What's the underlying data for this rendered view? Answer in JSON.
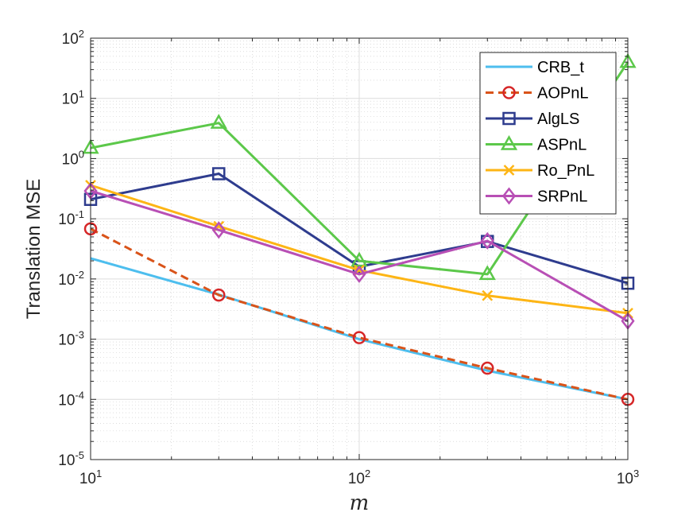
{
  "chart_data": {
    "type": "line",
    "xscale": "log",
    "yscale": "log",
    "x": [
      10,
      30,
      100,
      300,
      1000
    ],
    "xlim": [
      10,
      1000
    ],
    "ylim": [
      1e-05,
      100
    ],
    "xlabel": "m",
    "ylabel": "Translation MSE",
    "grid": true,
    "minor_grid": true,
    "legend_position": "top-right",
    "x_ticks": [
      {
        "base": "10",
        "exp": "1",
        "value": 10
      },
      {
        "base": "10",
        "exp": "2",
        "value": 100
      },
      {
        "base": "10",
        "exp": "3",
        "value": 1000
      }
    ],
    "y_ticks": [
      {
        "base": "10",
        "exp": "-5",
        "value": 1e-05
      },
      {
        "base": "10",
        "exp": "-4",
        "value": 0.0001
      },
      {
        "base": "10",
        "exp": "-3",
        "value": 0.001
      },
      {
        "base": "10",
        "exp": "-2",
        "value": 0.01
      },
      {
        "base": "10",
        "exp": "-1",
        "value": 0.1
      },
      {
        "base": "10",
        "exp": "0",
        "value": 1
      },
      {
        "base": "10",
        "exp": "1",
        "value": 10
      },
      {
        "base": "10",
        "exp": "2",
        "value": 100
      }
    ],
    "series": [
      {
        "name": "CRB_t",
        "color": "#4DBEEE",
        "marker": "none",
        "dash": "solid",
        "values": [
          0.022,
          0.0055,
          0.001,
          0.0003,
          0.0001
        ]
      },
      {
        "name": "AOPnL",
        "color": "#D95319",
        "marker_color": "#D62728",
        "marker": "circle",
        "dash": "dashed",
        "values": [
          0.068,
          0.0054,
          0.00106,
          0.00033,
          0.0001
        ]
      },
      {
        "name": "AlgLS",
        "color": "#2E3C8E",
        "marker": "square",
        "dash": "solid",
        "values": [
          0.21,
          0.56,
          0.016,
          0.042,
          0.0085
        ]
      },
      {
        "name": "ASPnL",
        "color": "#5CC84A",
        "marker": "triangle",
        "dash": "solid",
        "values": [
          1.5,
          3.9,
          0.02,
          0.012,
          40
        ]
      },
      {
        "name": "Ro_PnL",
        "color": "#FDB515",
        "marker": "x",
        "dash": "solid",
        "values": [
          0.36,
          0.075,
          0.014,
          0.0053,
          0.0027
        ]
      },
      {
        "name": "SRPnL",
        "color": "#B84FB5",
        "marker": "diamond",
        "dash": "solid",
        "values": [
          0.29,
          0.065,
          0.012,
          0.043,
          0.002
        ]
      }
    ]
  }
}
